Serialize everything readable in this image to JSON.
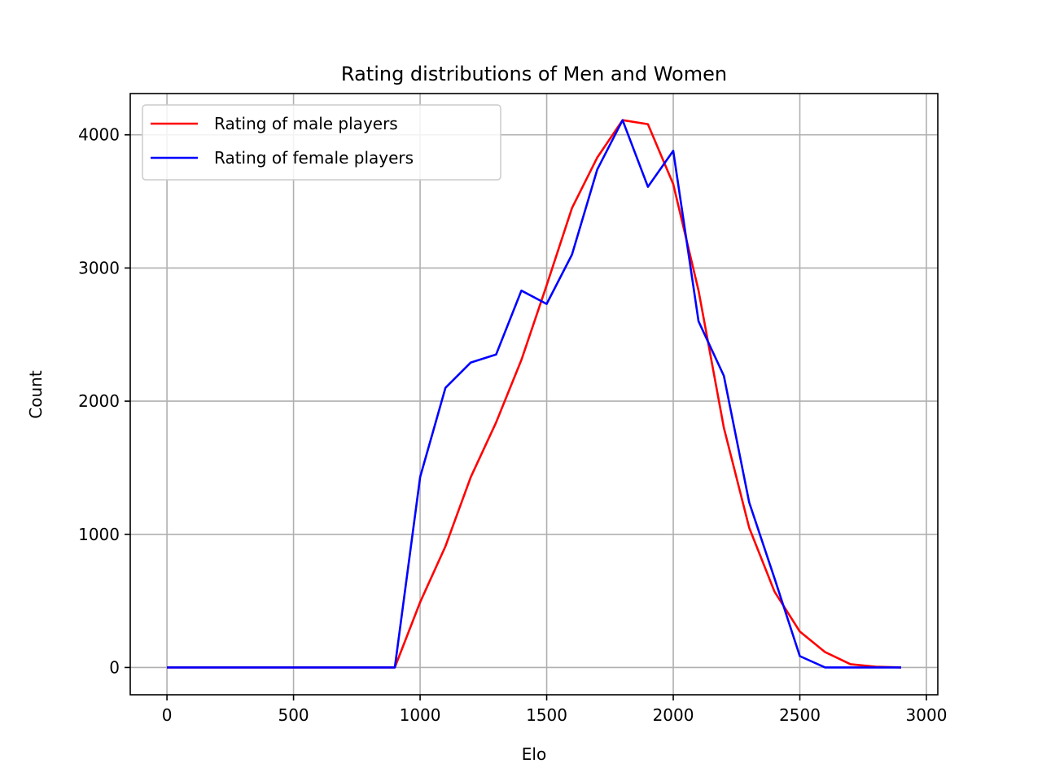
{
  "chart_data": {
    "type": "line",
    "title": "Rating distributions of Men and Women",
    "xlabel": "Elo",
    "ylabel": "Count",
    "xlim": [
      -145,
      3045
    ],
    "ylim": [
      -205,
      4310
    ],
    "xticks": [
      0,
      500,
      1000,
      1500,
      2000,
      2500,
      3000
    ],
    "yticks": [
      0,
      1000,
      2000,
      3000,
      4000
    ],
    "grid": true,
    "legend_position": "top-left",
    "x": [
      0,
      100,
      200,
      300,
      400,
      500,
      600,
      700,
      800,
      900,
      1000,
      1100,
      1200,
      1300,
      1400,
      1500,
      1600,
      1700,
      1800,
      1900,
      2000,
      2100,
      2200,
      2300,
      2400,
      2500,
      2600,
      2700,
      2800,
      2900
    ],
    "series": [
      {
        "name": "Rating of male players",
        "color": "#ff0000",
        "values": [
          0,
          0,
          0,
          0,
          0,
          0,
          0,
          0,
          0,
          0,
          490,
          910,
          1430,
          1840,
          2310,
          2870,
          3450,
          3830,
          4110,
          4080,
          3630,
          2830,
          1800,
          1050,
          570,
          270,
          115,
          25,
          5,
          0
        ]
      },
      {
        "name": "Rating of female players",
        "color": "#0000ff",
        "values": [
          0,
          0,
          0,
          0,
          0,
          0,
          0,
          0,
          0,
          0,
          1430,
          2100,
          2290,
          2350,
          2830,
          2730,
          3100,
          3740,
          4110,
          3610,
          3880,
          2600,
          2190,
          1240,
          670,
          85,
          0,
          0,
          0,
          0
        ]
      }
    ]
  }
}
